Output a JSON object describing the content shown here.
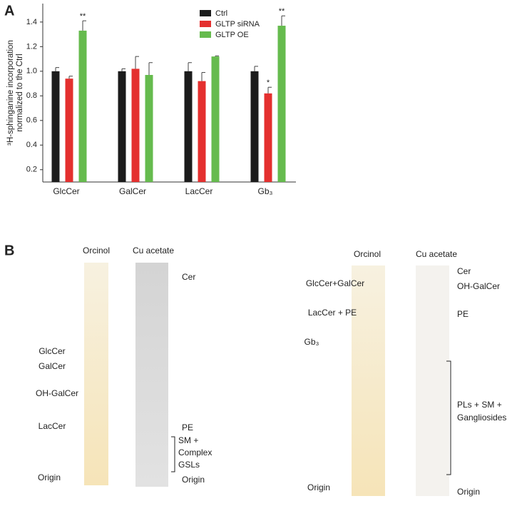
{
  "panels": [
    "A",
    "B"
  ],
  "chart_data": {
    "type": "bar",
    "ylabel_lines": [
      "³H-sphinganine incorporation",
      "normalized to the Ctrl"
    ],
    "categories": [
      "GlcCer",
      "GalCer",
      "LacCer",
      "Gb₃"
    ],
    "ylim": [
      0.1,
      1.55
    ],
    "yticks": [
      0.2,
      0.4,
      0.6,
      0.8,
      {
        "value": 1,
        "label": "1.0"
      },
      1.2,
      1.4
    ],
    "legend": "top-right",
    "series": [
      {
        "name": "Ctrl",
        "color": "#1c1c1c",
        "values": [
          1.0,
          1.0,
          1.0,
          1.0
        ],
        "errors": [
          0.03,
          0.02,
          0.07,
          0.04
        ],
        "significance": [
          null,
          null,
          null,
          null
        ]
      },
      {
        "name": "GLTP siRNA",
        "color": "#e4302f",
        "values": [
          0.94,
          1.02,
          0.92,
          0.82
        ],
        "errors": [
          0.02,
          0.1,
          0.07,
          0.05
        ],
        "significance": [
          null,
          null,
          null,
          "*"
        ]
      },
      {
        "name": "GLTP OE",
        "color": "#66bb4e",
        "values": [
          1.33,
          0.97,
          1.12,
          1.37
        ],
        "errors": [
          0.08,
          0.1,
          0.005,
          0.08
        ],
        "significance": [
          "**",
          null,
          null,
          "**"
        ]
      }
    ]
  },
  "blots": [
    {
      "headers": [
        "Orcinol",
        "Cu acetate"
      ],
      "left_labels": [
        [
          "GlcCer"
        ],
        [
          "GalCer"
        ],
        [
          "OH-GalCer"
        ],
        [
          "LacCer"
        ],
        [
          "Origin"
        ]
      ],
      "right_labels": [
        [
          "Cer"
        ],
        [
          "PE"
        ],
        [
          "SM +",
          "Complex",
          "GSLs"
        ],
        [
          "Origin"
        ]
      ]
    },
    {
      "headers": [
        "Orcinol",
        "Cu acetate"
      ],
      "left_labels": [
        [
          "GlcCer+GalCer"
        ],
        [
          "LacCer + PE"
        ],
        [
          "Gb₃"
        ],
        [
          "Origin"
        ]
      ],
      "right_labels": [
        [
          "Cer"
        ],
        [
          "OH-GalCer"
        ],
        [
          "PE"
        ],
        [
          "PLs + SM +",
          "Gangliosides"
        ],
        [
          "Origin"
        ]
      ]
    }
  ]
}
